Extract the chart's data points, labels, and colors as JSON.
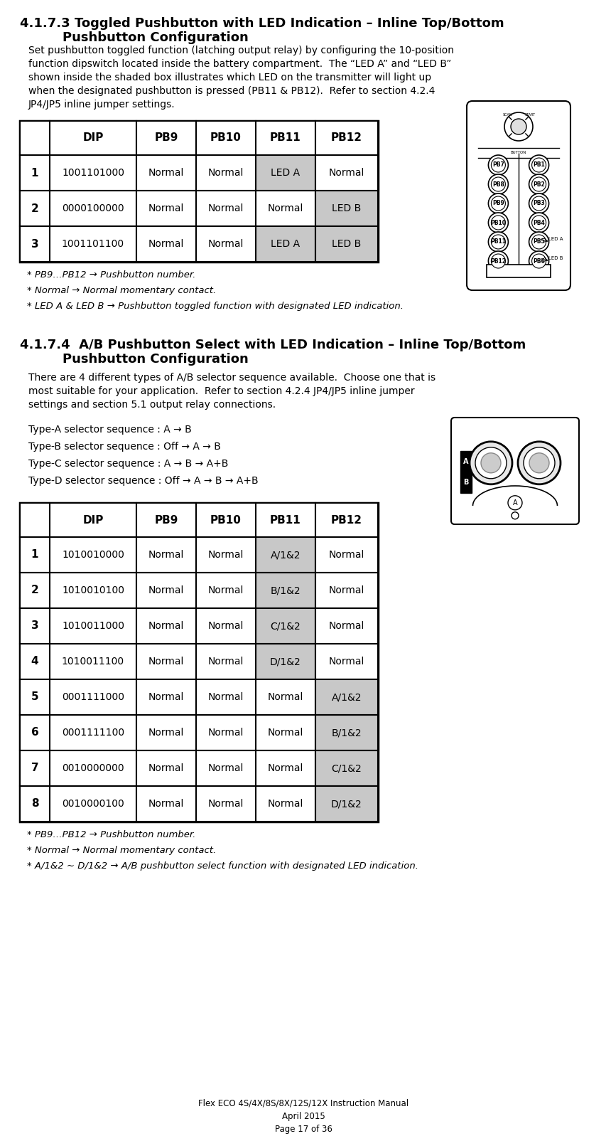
{
  "title1": "4.1.7.3 Toggled Pushbutton with LED Indication – Inline Top/Bottom",
  "title1b": "Pushbutton Configuration",
  "body1_lines": [
    "Set pushbutton toggled function (latching output relay) by configuring the 10-position",
    "function dipswitch located inside the battery compartment.  The “LED A” and “LED B”",
    "shown inside the shaded box illustrates which LED on the transmitter will light up",
    "when the designated pushbutton is pressed (PB11 & PB12).  Refer to section 4.2.4",
    "JP4/JP5 inline jumper settings."
  ],
  "table1_headers": [
    "",
    "DIP",
    "PB9",
    "PB10",
    "PB11",
    "PB12"
  ],
  "table1_rows": [
    [
      "1",
      "1001101000",
      "Normal",
      "Normal",
      "LED A",
      "Normal"
    ],
    [
      "2",
      "0000100000",
      "Normal",
      "Normal",
      "Normal",
      "LED B"
    ],
    [
      "3",
      "1001101100",
      "Normal",
      "Normal",
      "LED A",
      "LED B"
    ]
  ],
  "table1_shaded": [
    [
      0,
      4
    ],
    [
      1,
      5
    ],
    [
      2,
      4
    ],
    [
      2,
      5
    ]
  ],
  "notes1": [
    "* PB9…PB12 → Pushbutton number.",
    "* Normal → Normal momentary contact.",
    "* LED A & LED B → Pushbutton toggled function with designated LED indication."
  ],
  "title2": "4.1.7.4  A/B Pushbutton Select with LED Indication – Inline Top/Bottom",
  "title2b": "Pushbutton Configuration",
  "body2_lines": [
    "There are 4 different types of A/B selector sequence available.  Choose one that is",
    "most suitable for your application.  Refer to section 4.2.4 JP4/JP5 inline jumper",
    "settings and section 5.1 output relay connections."
  ],
  "selectors": [
    "Type-A selector sequence : A → B",
    "Type-B selector sequence : Off → A → B",
    "Type-C selector sequence : A → B → A+B",
    "Type-D selector sequence : Off → A → B → A+B"
  ],
  "table2_headers": [
    "",
    "DIP",
    "PB9",
    "PB10",
    "PB11",
    "PB12"
  ],
  "table2_rows": [
    [
      "1",
      "1010010000",
      "Normal",
      "Normal",
      "A/1&2",
      "Normal"
    ],
    [
      "2",
      "1010010100",
      "Normal",
      "Normal",
      "B/1&2",
      "Normal"
    ],
    [
      "3",
      "1010011000",
      "Normal",
      "Normal",
      "C/1&2",
      "Normal"
    ],
    [
      "4",
      "1010011100",
      "Normal",
      "Normal",
      "D/1&2",
      "Normal"
    ],
    [
      "5",
      "0001111000",
      "Normal",
      "Normal",
      "Normal",
      "A/1&2"
    ],
    [
      "6",
      "0001111100",
      "Normal",
      "Normal",
      "Normal",
      "B/1&2"
    ],
    [
      "7",
      "0010000000",
      "Normal",
      "Normal",
      "Normal",
      "C/1&2"
    ],
    [
      "8",
      "0010000100",
      "Normal",
      "Normal",
      "Normal",
      "D/1&2"
    ]
  ],
  "table2_shaded": [
    [
      0,
      4
    ],
    [
      1,
      4
    ],
    [
      2,
      4
    ],
    [
      3,
      4
    ],
    [
      4,
      5
    ],
    [
      5,
      5
    ],
    [
      6,
      5
    ],
    [
      7,
      5
    ]
  ],
  "notes2": [
    "* PB9…PB12 → Pushbutton number.",
    "* Normal → Normal momentary contact.",
    "* A/1&2 ~ D/1&2 → A/B pushbutton select function with designated LED indication."
  ],
  "footer": "Flex ECO 4S/4X/8S/8X/12S/12X Instruction Manual\nApril 2015\nPage 17 of 36",
  "shaded_color": "#c8c8c8",
  "bg_color": "#ffffff"
}
